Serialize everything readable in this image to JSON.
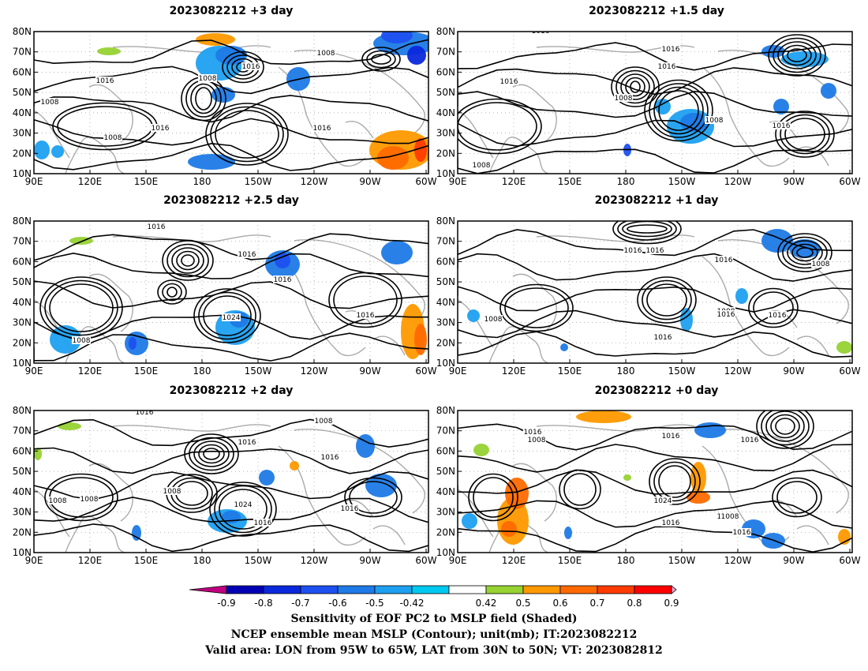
{
  "panels": [
    {
      "title": "2023082212 +3 day",
      "labels": [
        "1008",
        "1016",
        "1016",
        "1008",
        "1008",
        "1016",
        "1016",
        "1008"
      ]
    },
    {
      "title": "2023082212 +1.5 day",
      "labels": [
        "1016",
        "1016",
        "1016",
        "1008",
        "1016",
        "1008",
        "1016",
        "1008"
      ]
    },
    {
      "title": "2023082212 +2.5 day",
      "labels": [
        "1016",
        "1016",
        "1016",
        "1024",
        "1008",
        "1016"
      ]
    },
    {
      "title": "2023082212 +1 day",
      "labels": [
        "1016",
        "1016",
        "1016",
        "1008",
        "1008",
        "1016",
        "1016",
        "1008",
        "1016"
      ]
    },
    {
      "title": "2023082212 +2 day",
      "labels": [
        "1016",
        "1008",
        "1016",
        "1016",
        "1008",
        "1008",
        "1024",
        "1016",
        "1016",
        "1008"
      ]
    },
    {
      "title": "2023082212 +0 day",
      "labels": [
        "1016",
        "1008",
        "1016",
        "1016",
        "1008",
        "1024",
        "1016",
        "1008",
        "1016"
      ]
    }
  ],
  "axes": {
    "y_ticks": [
      "80N",
      "70N",
      "60N",
      "50N",
      "40N",
      "30N",
      "20N",
      "10N"
    ],
    "x_ticks": [
      "90E",
      "120E",
      "150E",
      "180",
      "150W",
      "120W",
      "90W",
      "60W"
    ]
  },
  "colorbar": {
    "labels": [
      "-0.9",
      "-0.8",
      "-0.7",
      "-0.6",
      "-0.5",
      "-0.42",
      "0.42",
      "0.5",
      "0.6",
      "0.7",
      "0.8",
      "0.9"
    ],
    "colors": [
      "#c0007f",
      "#0000b4",
      "#0a28dc",
      "#1e50f0",
      "#1e7ae6",
      "#1ea0f0",
      "#00c8f0",
      "#ffffff",
      "#96d232",
      "#ff9900",
      "#ff6a00",
      "#ff3c00",
      "#ff0000",
      "#f5a0c8"
    ]
  },
  "caption": {
    "line1": "Sensitivity of EOF PC2 to MSLP field (Shaded)",
    "line2": "NCEP ensemble mean MSLP (Contour); unit(mb); IT:2023082212",
    "line3": "Valid area: LON from 95W to 65W, LAT from 30N to 50N; VT: 2023082812"
  }
}
